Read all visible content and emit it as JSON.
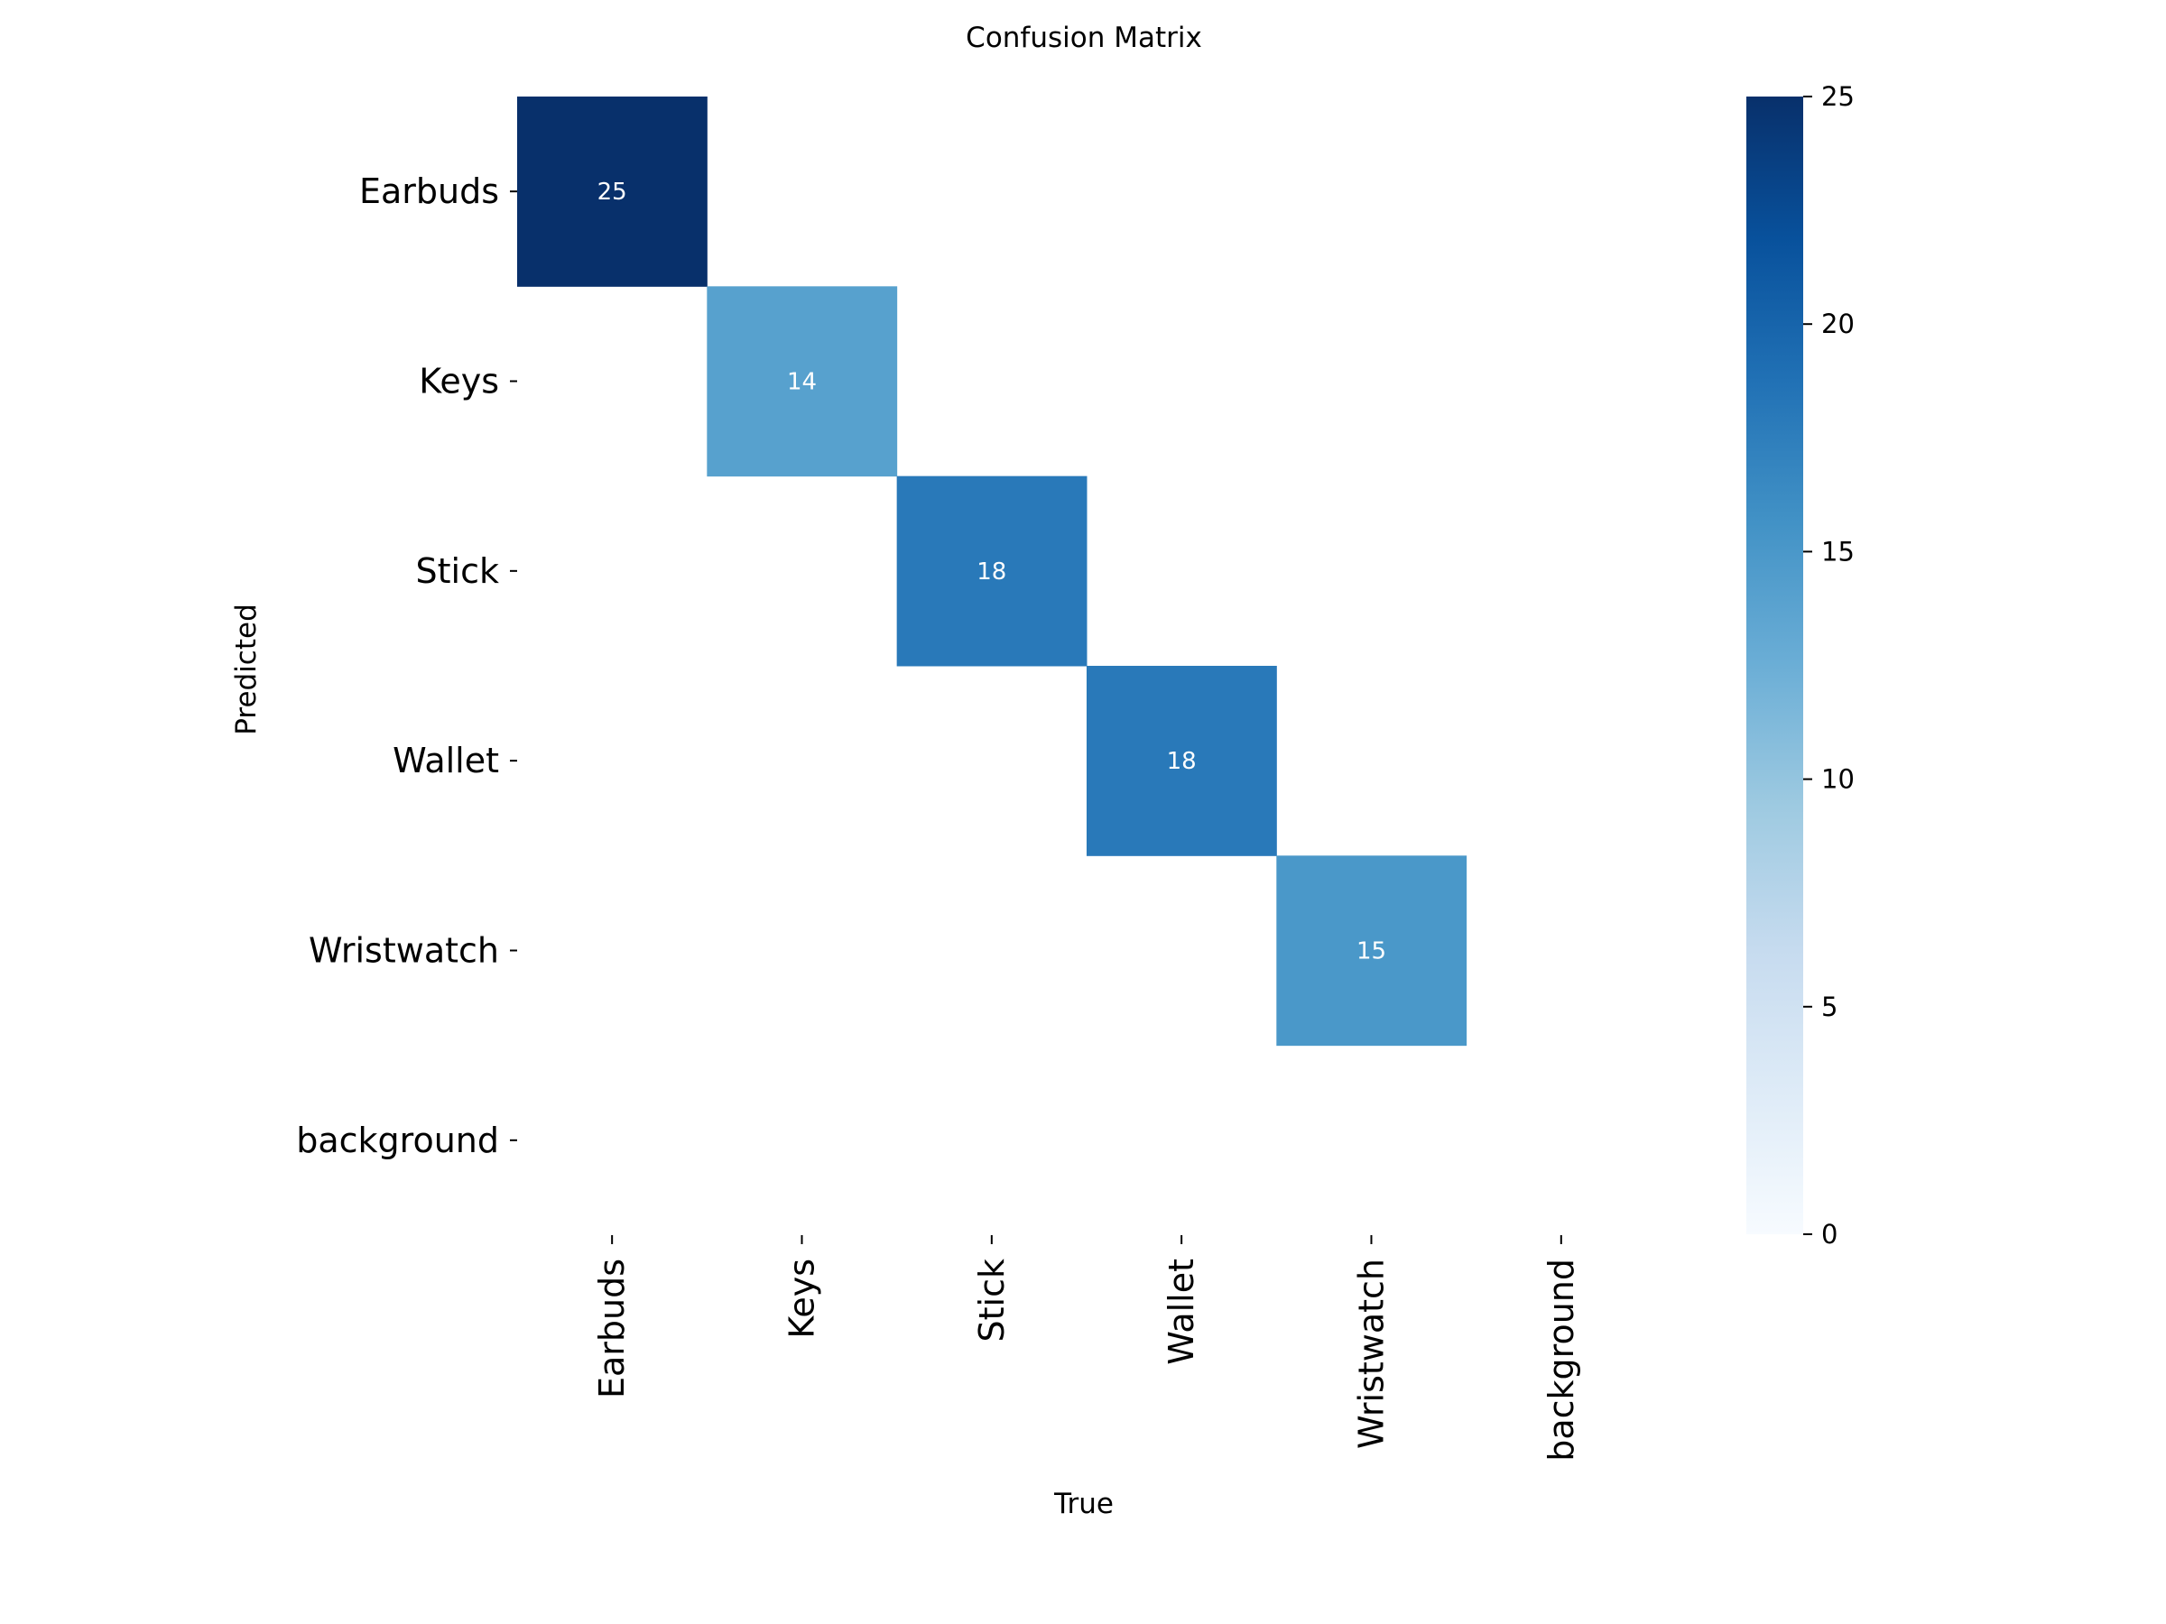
{
  "chart_data": {
    "type": "heatmap",
    "title": "Confusion Matrix",
    "xlabel": "True",
    "ylabel": "Predicted",
    "x_categories": [
      "Earbuds",
      "Keys",
      "Stick",
      "Wallet",
      "Wristwatch",
      "background"
    ],
    "y_categories": [
      "Earbuds",
      "Keys",
      "Stick",
      "Wallet",
      "Wristwatch",
      "background"
    ],
    "matrix": [
      [
        25,
        0,
        0,
        0,
        0,
        0
      ],
      [
        0,
        14,
        0,
        0,
        0,
        0
      ],
      [
        0,
        0,
        18,
        0,
        0,
        0
      ],
      [
        0,
        0,
        0,
        18,
        0,
        0
      ],
      [
        0,
        0,
        0,
        0,
        15,
        0
      ],
      [
        0,
        0,
        0,
        0,
        0,
        0
      ]
    ],
    "zero_cells_shown": false,
    "colormap": "Blues",
    "color_range": [
      0,
      25
    ],
    "colorbar_ticks": [
      0,
      5,
      10,
      15,
      20,
      25
    ],
    "colorbar_placement": "right",
    "grid": false
  }
}
